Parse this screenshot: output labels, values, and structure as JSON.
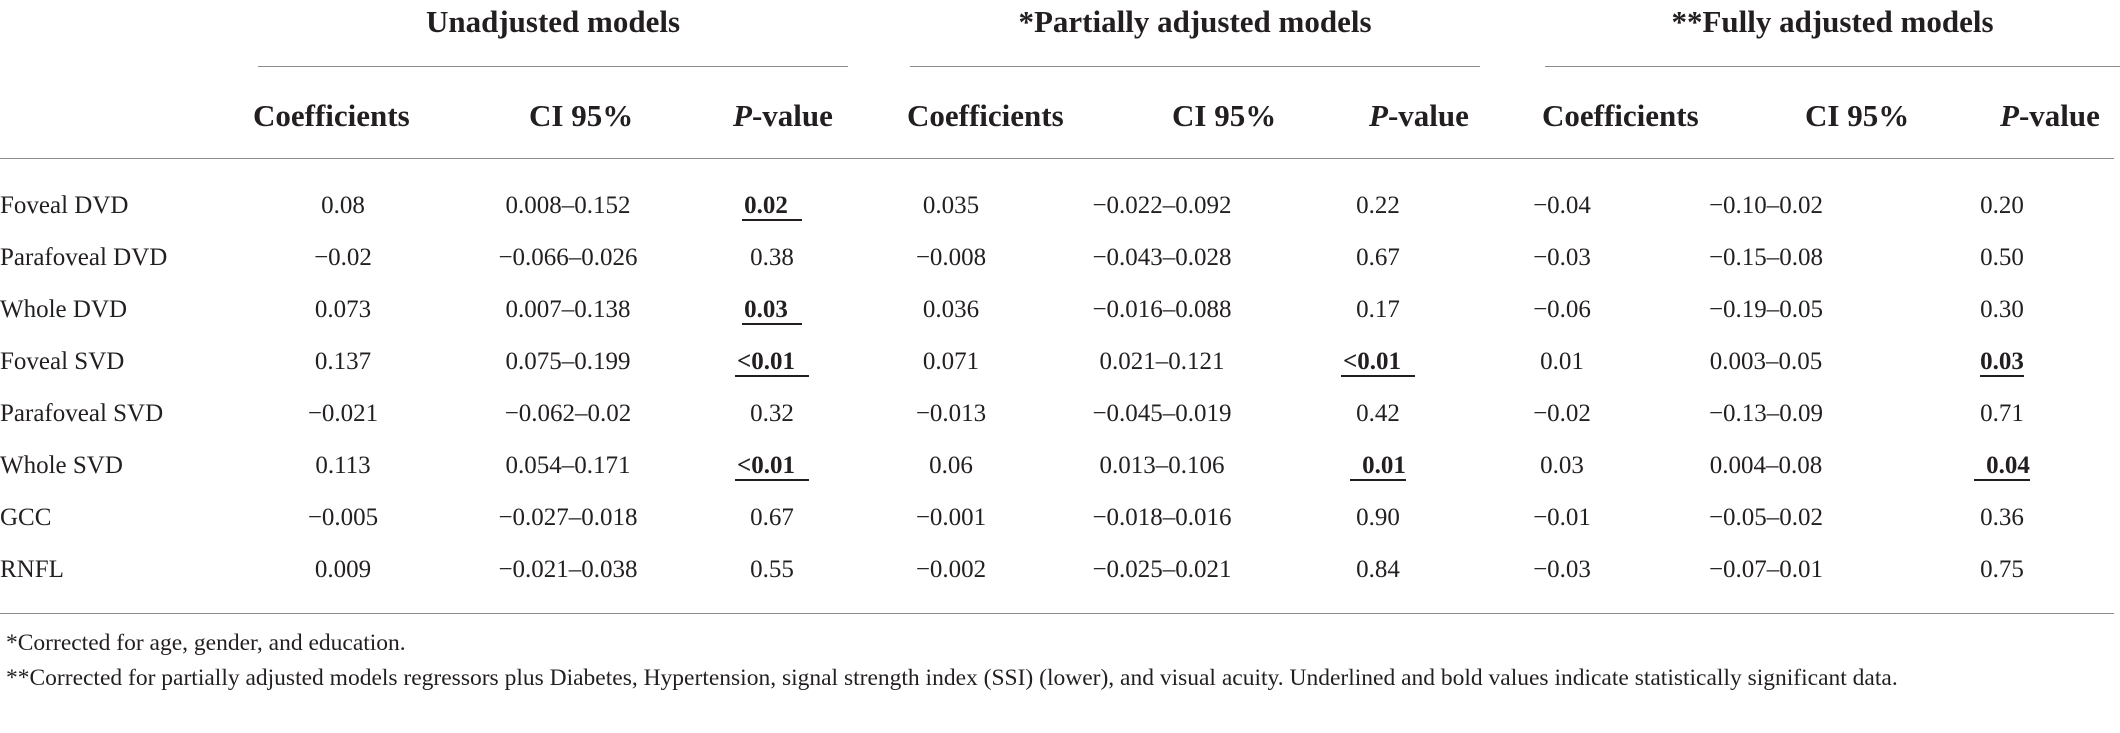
{
  "groups": [
    {
      "title": "Unadjusted models"
    },
    {
      "title": "*Partially adjusted models"
    },
    {
      "title": "**Fully adjusted models"
    }
  ],
  "columns": {
    "coefficients": "Coefficients",
    "ci": "CI 95%",
    "p_italic": "P",
    "p_rest": "-value"
  },
  "rows": [
    {
      "label": "Foveal DVD",
      "values": [
        [
          "0.08",
          "0.008–0.152",
          "0.02"
        ],
        [
          "0.035",
          "−0.022–0.092",
          "0.22"
        ],
        [
          "−0.04",
          "−0.10–0.02",
          "0.20"
        ]
      ],
      "significant": [
        true,
        false,
        false
      ]
    },
    {
      "label": "Parafoveal DVD",
      "values": [
        [
          "−0.02",
          "−0.066–0.026",
          "0.38"
        ],
        [
          "−0.008",
          "−0.043–0.028",
          "0.67"
        ],
        [
          "−0.03",
          "−0.15–0.08",
          "0.50"
        ]
      ],
      "significant": [
        false,
        false,
        false
      ]
    },
    {
      "label": "Whole DVD",
      "values": [
        [
          "0.073",
          "0.007–0.138",
          "0.03"
        ],
        [
          "0.036",
          "−0.016–0.088",
          "0.17"
        ],
        [
          "−0.06",
          "−0.19–0.05",
          "0.30"
        ]
      ],
      "significant": [
        true,
        false,
        false
      ]
    },
    {
      "label": "Foveal SVD",
      "values": [
        [
          "0.137",
          "0.075–0.199",
          "<0.01"
        ],
        [
          "0.071",
          "0.021–0.121",
          "<0.01"
        ],
        [
          "0.01",
          "0.003–0.05",
          "0.03"
        ]
      ],
      "significant": [
        true,
        true,
        true
      ]
    },
    {
      "label": "Parafoveal SVD",
      "values": [
        [
          "−0.021",
          "−0.062–0.02",
          "0.32"
        ],
        [
          "−0.013",
          "−0.045–0.019",
          "0.42"
        ],
        [
          "−0.02",
          "−0.13–0.09",
          "0.71"
        ]
      ],
      "significant": [
        false,
        false,
        false
      ]
    },
    {
      "label": "Whole SVD",
      "values": [
        [
          "0.113",
          "0.054–0.171",
          "<0.01"
        ],
        [
          "0.06",
          "0.013–0.106",
          "0.01"
        ],
        [
          "0.03",
          "0.004–0.08",
          "0.04"
        ]
      ],
      "significant": [
        true,
        true,
        true
      ]
    },
    {
      "label": "GCC",
      "values": [
        [
          "−0.005",
          "−0.027–0.018",
          "0.67"
        ],
        [
          "−0.001",
          "−0.018–0.016",
          "0.90"
        ],
        [
          "−0.01",
          "−0.05–0.02",
          "0.36"
        ]
      ],
      "significant": [
        false,
        false,
        false
      ]
    },
    {
      "label": "RNFL",
      "values": [
        [
          "0.009",
          "−0.021–0.038",
          "0.55"
        ],
        [
          "−0.002",
          "−0.025–0.021",
          "0.84"
        ],
        [
          "−0.03",
          "−0.07–0.01",
          "0.75"
        ]
      ],
      "significant": [
        false,
        false,
        false
      ]
    }
  ],
  "footnotes": [
    "*Corrected for age, gender, and education.",
    "**Corrected for partially adjusted models regressors plus Diabetes, Hypertension, signal strength index (SSI) (lower), and visual acuity. Underlined and bold values indicate statistically significant data."
  ]
}
